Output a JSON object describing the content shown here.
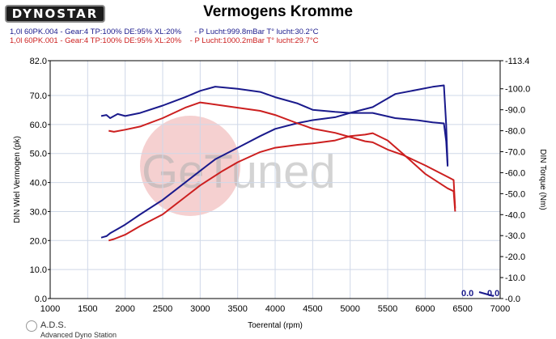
{
  "header": {
    "logo_text": "DYNOSTAR",
    "title": "Vermogens Kromme",
    "run_a": "1,0l 60PK.004 - Gear:4 TP:100% DE:95% XL:20%      - P Lucht:999.8mBar T° lucht:30.2°C",
    "run_b": "1,0l 60PK.001 - Gear:4 TP:100% DE:95% XL:20%    - P Lucht:1000.2mBar T° lucht:29.7°C"
  },
  "watermark": {
    "text": "GeTuned"
  },
  "footer": {
    "brand": "A.D.S.",
    "subtitle": "Advanced Dyno Station"
  },
  "readouts": {
    "left": "0.0",
    "right": "0.0"
  },
  "colors": {
    "run_a": "#1a1a8c",
    "run_b": "#cc1f1f",
    "grid": "#cfd8e8",
    "watermark_circle": "#f2c4c4"
  },
  "chart_data": {
    "type": "line",
    "title": "Vermogens Kromme",
    "xlabel": "Toerental (rpm)",
    "ylabel": "DIN Wiel Vermogen (pk)",
    "y2label": "DIN Torque (Nm)",
    "xlim": [
      1000,
      7000
    ],
    "ylim": [
      0,
      82
    ],
    "y2lim": [
      0,
      113.4
    ],
    "x_ticks": [
      1000,
      1500,
      2000,
      2500,
      3000,
      3500,
      4000,
      4500,
      5000,
      5500,
      6000,
      6500,
      7000
    ],
    "y_ticks": [
      0.0,
      10.0,
      20.0,
      30.0,
      40.0,
      50.0,
      60.0,
      70.0,
      82.0
    ],
    "y2_ticks": [
      0.0,
      10.0,
      20.0,
      30.0,
      40.0,
      50.0,
      60.0,
      70.0,
      80.0,
      90.0,
      100.0,
      113.4
    ],
    "grid": true,
    "series": [
      {
        "name": "1,0l 60PK.004",
        "axis": "left",
        "color": "#1a1a8c",
        "x": [
          1680,
          1750,
          1800,
          1900,
          2000,
          2200,
          2500,
          2800,
          3000,
          3200,
          3500,
          3800,
          4000,
          4300,
          4500,
          4800,
          5000,
          5300,
          5600,
          5900,
          6100,
          6250,
          6280,
          6300
        ],
        "y": [
          21.0,
          21.5,
          22.5,
          24.0,
          25.5,
          29.0,
          34.0,
          40.0,
          44.0,
          48.0,
          52.0,
          56.0,
          58.5,
          60.5,
          61.5,
          62.5,
          64.0,
          66.0,
          70.5,
          72.0,
          73.0,
          73.5,
          60.0,
          46.0
        ]
      },
      {
        "name": "1,0l 60PK.004 Torque",
        "axis": "right",
        "color": "#1a1a8c",
        "x": [
          1680,
          1750,
          1800,
          1900,
          2000,
          2200,
          2500,
          2800,
          3000,
          3200,
          3500,
          3800,
          4000,
          4300,
          4500,
          4800,
          5000,
          5300,
          5600,
          5900,
          6100,
          6250,
          6280,
          6300
        ],
        "y": [
          87.0,
          87.5,
          86.0,
          88.0,
          87.0,
          88.5,
          92.0,
          96.0,
          99.0,
          101.0,
          100.0,
          98.5,
          96.0,
          93.0,
          90.0,
          89.0,
          88.5,
          88.5,
          86.0,
          85.0,
          84.0,
          83.5,
          75.0,
          63.0
        ]
      },
      {
        "name": "1,0l 60PK.001",
        "axis": "left",
        "color": "#cc1f1f",
        "x": [
          1780,
          1850,
          2000,
          2200,
          2500,
          2800,
          3000,
          3300,
          3500,
          3800,
          4000,
          4300,
          4500,
          4800,
          5000,
          5200,
          5300,
          5500,
          5700,
          6000,
          6300,
          6380,
          6400
        ],
        "y": [
          20.0,
          20.5,
          22.0,
          25.0,
          29.0,
          35.0,
          39.0,
          44.0,
          47.0,
          50.5,
          52.0,
          53.0,
          53.5,
          54.5,
          56.0,
          56.5,
          57.0,
          54.5,
          50.0,
          43.0,
          38.0,
          37.0,
          30.0
        ]
      },
      {
        "name": "1,0l 60PK.001 Torque",
        "axis": "right",
        "color": "#cc1f1f",
        "x": [
          1780,
          1850,
          2000,
          2200,
          2500,
          2800,
          3000,
          3300,
          3500,
          3800,
          4000,
          4300,
          4500,
          4800,
          5000,
          5200,
          5300,
          5500,
          5700,
          6000,
          6300,
          6380,
          6400
        ],
        "y": [
          80.0,
          79.5,
          80.5,
          82.0,
          86.0,
          91.0,
          93.5,
          92.0,
          91.0,
          89.5,
          87.5,
          83.5,
          81.0,
          79.0,
          77.0,
          75.0,
          74.5,
          71.0,
          68.5,
          63.5,
          58.0,
          56.5,
          43.0
        ]
      }
    ]
  }
}
